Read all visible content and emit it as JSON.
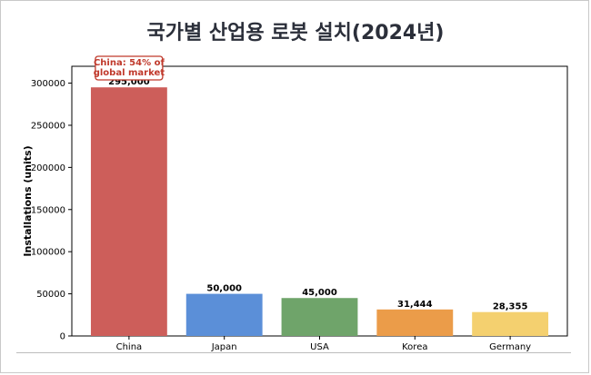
{
  "chart_data": {
    "type": "bar",
    "title": "국가별 산업용 로봇 설치(2024년)",
    "xlabel": "",
    "ylabel": "Installations (units)",
    "categories": [
      "China",
      "Japan",
      "USA",
      "Korea",
      "Germany"
    ],
    "values": [
      295000,
      50000,
      45000,
      31444,
      28355
    ],
    "value_labels": [
      "295,000",
      "50,000",
      "45,000",
      "31,444",
      "28,355"
    ],
    "colors": [
      "#cd5e5a",
      "#5b8fd8",
      "#6fa46a",
      "#eb9c49",
      "#f4d06f"
    ],
    "ylim": [
      0,
      320000
    ],
    "yticks": [
      0,
      50000,
      100000,
      150000,
      200000,
      250000,
      300000
    ],
    "ytick_labels": [
      "0",
      "50000",
      "100000",
      "150000",
      "200000",
      "250000",
      "300000"
    ],
    "grid": false,
    "annotation": {
      "category": "China",
      "lines": [
        "China: 54% of",
        "global market"
      ],
      "color": "#c0392b"
    }
  }
}
